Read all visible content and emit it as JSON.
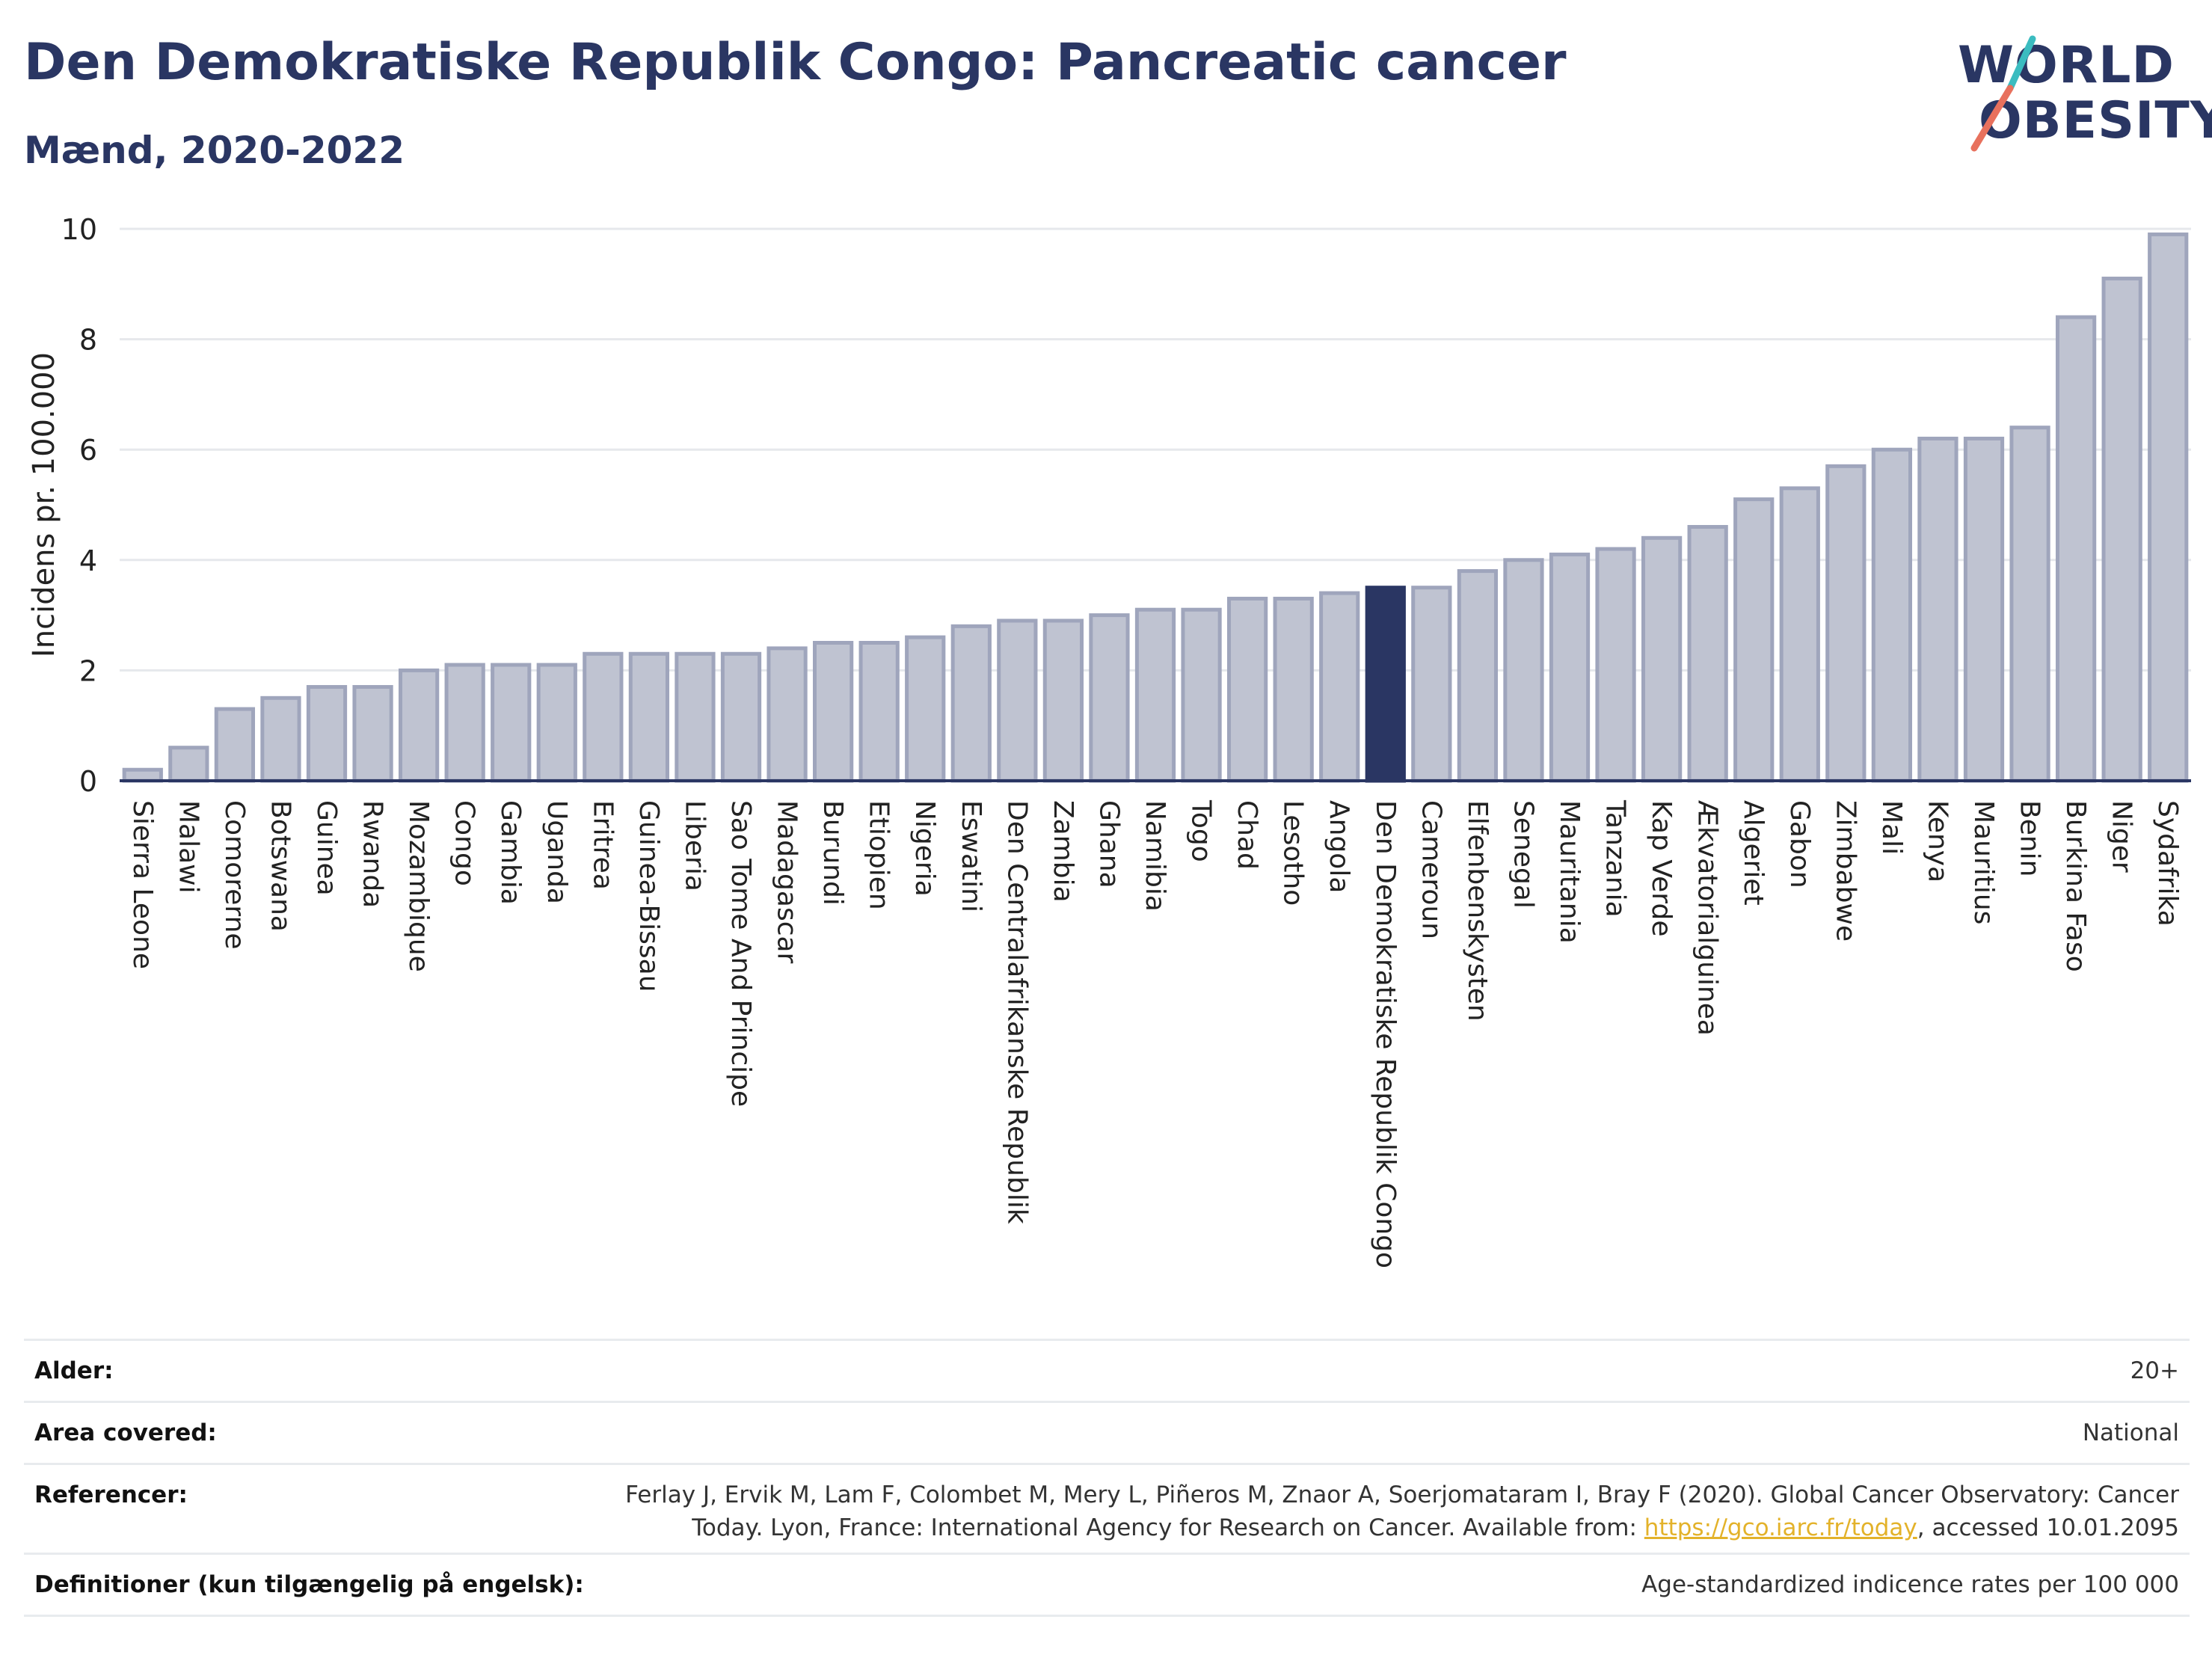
{
  "header": {
    "title": "Den Demokratiske Republik Congo: Pancreatic cancer",
    "subtitle": "Mænd, 2020-2022"
  },
  "logo": {
    "line1": "WORLD",
    "line2": "OBESITY"
  },
  "chart_data": {
    "type": "bar",
    "ylabel": "Incidens pr. 100.000",
    "ylim": [
      0,
      10
    ],
    "yticks": [
      0,
      2,
      4,
      6,
      8,
      10
    ],
    "grid": true,
    "highlight": "Den Demokratiske Republik Congo",
    "colors": {
      "bar": "#bfc3d1",
      "bar_edge": "#9fa5bc",
      "highlight": "#2a3663",
      "grid": "#e6e8ec"
    },
    "categories": [
      "Sierra Leone",
      "Malawi",
      "Comorerne",
      "Botswana",
      "Guinea",
      "Rwanda",
      "Mozambique",
      "Congo",
      "Gambia",
      "Uganda",
      "Eritrea",
      "Guinea-Bissau",
      "Liberia",
      "Sao Tome And Principe",
      "Madagascar",
      "Burundi",
      "Etiopien",
      "Nigeria",
      "Eswatini",
      "Den Centralafrikanske Republik",
      "Zambia",
      "Ghana",
      "Namibia",
      "Togo",
      "Chad",
      "Lesotho",
      "Angola",
      "Den Demokratiske Republik Congo",
      "Cameroun",
      "Elfenbenskysten",
      "Senegal",
      "Mauritania",
      "Tanzania",
      "Kap Verde",
      "Ækvatorialguinea",
      "Algeriet",
      "Gabon",
      "Zimbabwe",
      "Mali",
      "Kenya",
      "Mauritius",
      "Benin",
      "Burkina Faso",
      "Niger",
      "Sydafrika"
    ],
    "values": [
      0.2,
      0.6,
      1.3,
      1.5,
      1.7,
      1.7,
      2.0,
      2.1,
      2.1,
      2.1,
      2.3,
      2.3,
      2.3,
      2.3,
      2.4,
      2.5,
      2.5,
      2.6,
      2.8,
      2.9,
      2.9,
      3.0,
      3.1,
      3.1,
      3.3,
      3.3,
      3.4,
      3.5,
      3.5,
      3.8,
      4.0,
      4.1,
      4.2,
      4.4,
      4.6,
      5.1,
      5.3,
      5.7,
      6.0,
      6.2,
      6.2,
      6.4,
      8.4,
      9.1,
      9.9
    ]
  },
  "footer": {
    "rows": [
      {
        "label": "Alder:",
        "value": "20+"
      },
      {
        "label": "Area covered:",
        "value": "National"
      },
      {
        "label": "Referencer:",
        "value_line1": "Ferlay J, Ervik M, Lam F, Colombet M, Mery L, Piñeros M, Znaor A, Soerjomataram I, Bray F (2020). Global Cancer Observatory: Cancer",
        "value_line2_pre": "Today. Lyon, France: International Agency for Research on Cancer. Available from: ",
        "value_link": "https://gco.iarc.fr/today",
        "value_line2_post": ", accessed 10.01.2095"
      },
      {
        "label": "Definitioner (kun tilgængelig på engelsk):",
        "value": "Age-standardized indicence rates per 100 000"
      }
    ]
  }
}
